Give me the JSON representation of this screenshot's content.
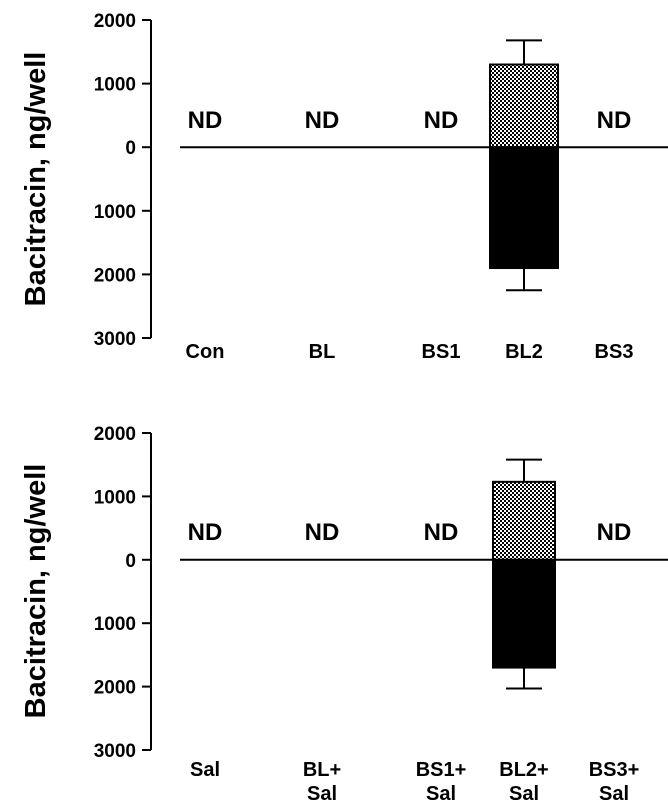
{
  "chart_data": [
    {
      "type": "bar",
      "ylabel": "Bacitracin, ng/well",
      "ylim": [
        -3000,
        2000
      ],
      "yticks": [
        2000,
        1000,
        0,
        -1000,
        -2000,
        -3000
      ],
      "ytick_labels": [
        "2000",
        "1000",
        "0",
        "1000",
        "2000",
        "3000"
      ],
      "categories": [
        [
          "Con"
        ],
        [
          "BL"
        ],
        [
          "BS1"
        ],
        [
          "BL2"
        ],
        [
          "BS3"
        ]
      ],
      "nd_text": "ND",
      "series": [
        {
          "values": [
            null,
            null,
            null,
            1300,
            null
          ],
          "errors": [
            null,
            null,
            null,
            380,
            null
          ],
          "fill": "checker"
        },
        {
          "values": [
            null,
            null,
            null,
            -1900,
            null
          ],
          "errors": [
            null,
            null,
            null,
            350,
            null
          ],
          "fill": "#000000"
        }
      ],
      "not_detected": [
        true,
        true,
        true,
        false,
        true
      ]
    },
    {
      "type": "bar",
      "ylabel": "Bacitracin, ng/well",
      "ylim": [
        -3000,
        2000
      ],
      "yticks": [
        2000,
        1000,
        0,
        -1000,
        -2000,
        -3000
      ],
      "ytick_labels": [
        "2000",
        "1000",
        "0",
        "1000",
        "2000",
        "3000"
      ],
      "categories": [
        [
          "Sal"
        ],
        [
          "BL+",
          "Sal"
        ],
        [
          "BS1+",
          "Sal"
        ],
        [
          "BL2+",
          "Sal"
        ],
        [
          "BS3+",
          "Sal"
        ]
      ],
      "nd_text": "ND",
      "series": [
        {
          "values": [
            null,
            null,
            null,
            1230,
            null
          ],
          "errors": [
            null,
            null,
            null,
            350,
            null
          ],
          "fill": "checker"
        },
        {
          "values": [
            null,
            null,
            null,
            -1700,
            null
          ],
          "errors": [
            null,
            null,
            null,
            330,
            null
          ],
          "fill": "#000000"
        }
      ],
      "not_detected": [
        true,
        true,
        true,
        false,
        true
      ]
    }
  ]
}
